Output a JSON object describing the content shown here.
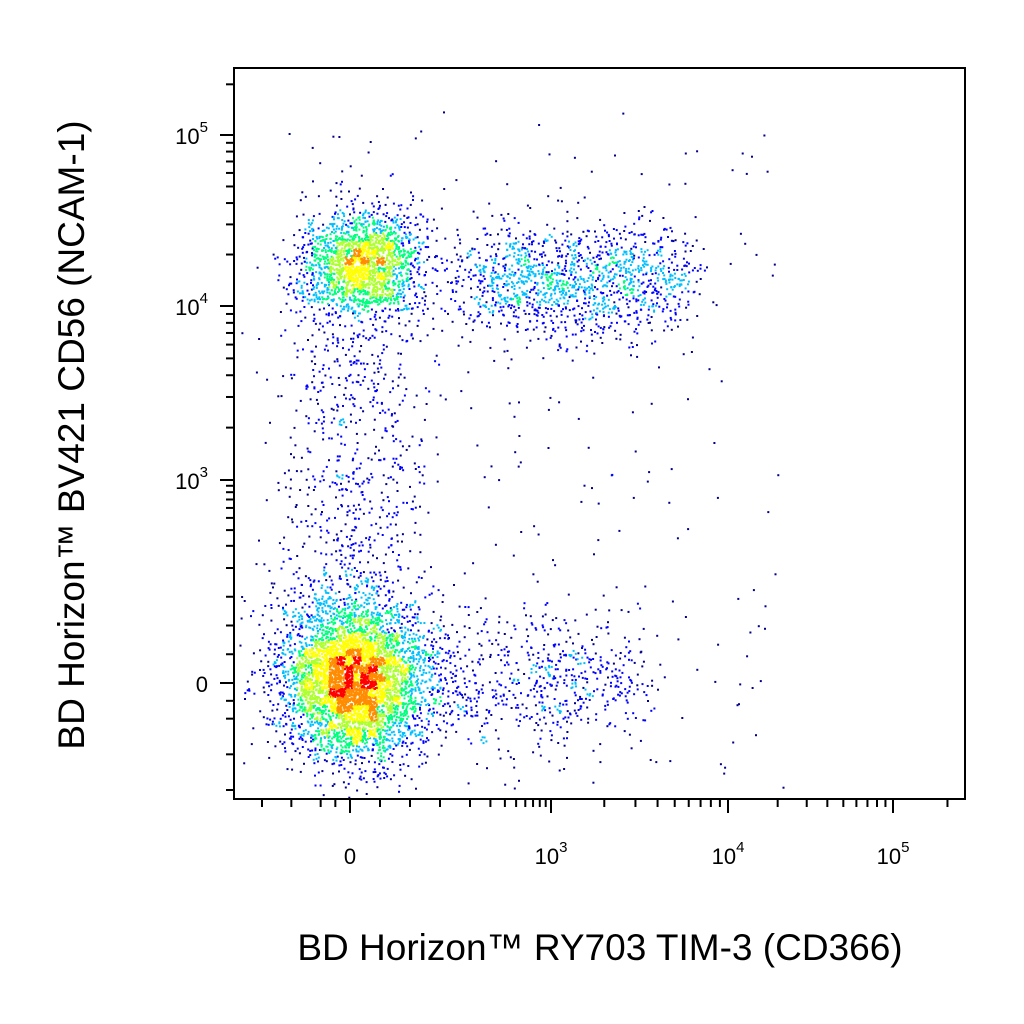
{
  "chart_data": {
    "type": "scatter",
    "style": "flow-cytometry-pseudocolor-density",
    "xlabel": "BD Horizon™ RY703 TIM-3 (CD366)",
    "ylabel": "BD Horizon™ BV421 CD56 (NCAM-1)",
    "x_scale": "biexponential",
    "y_scale": "biexponential",
    "x_ticks": [
      {
        "value": 0,
        "base": "0",
        "exp": ""
      },
      {
        "value": 1000,
        "base": "10",
        "exp": "3"
      },
      {
        "value": 10000,
        "base": "10",
        "exp": "4"
      },
      {
        "value": 100000,
        "base": "10",
        "exp": "5"
      }
    ],
    "y_ticks": [
      {
        "value": 0,
        "base": "0",
        "exp": ""
      },
      {
        "value": 1000,
        "base": "10",
        "exp": "3"
      },
      {
        "value": 10000,
        "base": "10",
        "exp": "4"
      },
      {
        "value": 100000,
        "base": "10",
        "exp": "5"
      }
    ],
    "xlim": [
      -300,
      250000
    ],
    "ylim": [
      -300,
      250000
    ],
    "grid": false,
    "legend": "none",
    "density_colors": [
      "#00008b",
      "#0000ff",
      "#00bfff",
      "#00ff7f",
      "#adff2f",
      "#ffff00",
      "#ff8c00",
      "#ff0000"
    ],
    "populations": [
      {
        "label": "",
        "x_center": 5,
        "y_center": 5,
        "relative_count": 0.55
      },
      {
        "label": "",
        "x_center": 20,
        "y_center": 18000,
        "relative_count": 0.22
      },
      {
        "label": "",
        "x_center": 1200,
        "y_center": 14000,
        "relative_count": 0.15
      },
      {
        "label": "",
        "x_center": 400,
        "y_center": 5,
        "relative_count": 0.08
      }
    ]
  }
}
